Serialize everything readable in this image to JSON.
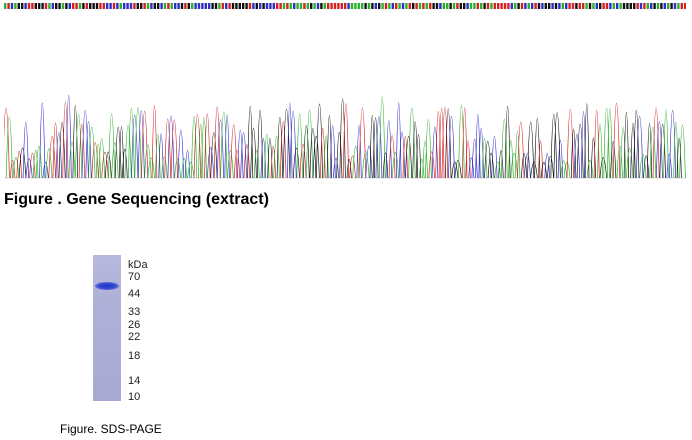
{
  "sequencing": {
    "caption": "Figure . Gene Sequencing (extract)",
    "colors": {
      "A": "#2bb02b",
      "C": "#2d2dc8",
      "G": "#111111",
      "T": "#d42020"
    }
  },
  "gel": {
    "unit_label": "kDa",
    "markers": [
      "70",
      "44",
      "33",
      "26",
      "22",
      "18",
      "14",
      "10"
    ],
    "caption": "Figure. SDS-PAGE",
    "band_color": "#2a3fcc",
    "lane_color": "#aeb1d8"
  }
}
